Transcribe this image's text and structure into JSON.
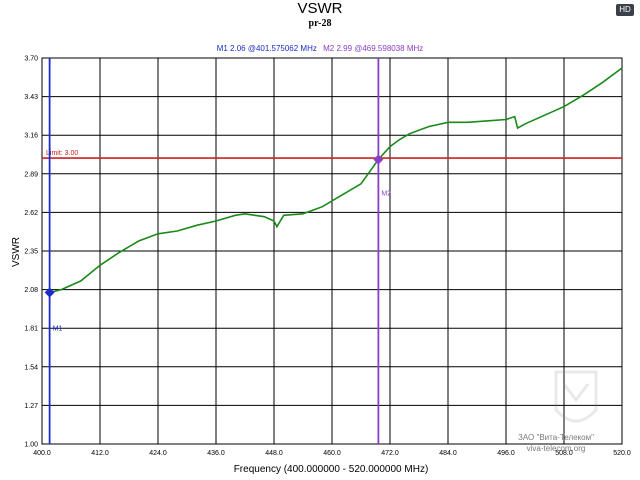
{
  "badge": "HD",
  "markers": {
    "m1_text": "M1  2.06 @401.575062 MHz",
    "m2_text": "M2  2.99 @469.598038 MHz",
    "m1_label": "M1",
    "m2_label": "M2"
  },
  "limit_label": "Limit: 3.00",
  "watermark": {
    "line1": "ЗАО \"Вита-Телеком\"",
    "line2": "viva-telecom.org"
  },
  "colors": {
    "trace": "#1a8a1a",
    "limit": "#cc2222",
    "m1": "#1a2dc8",
    "m2": "#8a3ec8",
    "grid": "#000000"
  },
  "chart_data": {
    "type": "line",
    "title": "VSWR",
    "subtitle": "pr-28",
    "xlabel": "Frequency (400.000000 - 520.000000 MHz)",
    "ylabel": "VSWR",
    "xlim": [
      400,
      520
    ],
    "ylim": [
      1.0,
      3.7
    ],
    "x_ticks": [
      400.0,
      412.0,
      424.0,
      436.0,
      448.0,
      460.0,
      472.0,
      484.0,
      496.0,
      508.0,
      520.0
    ],
    "x_tick_labels": [
      "400.0",
      "412.0",
      "424.0",
      "436.0",
      "448.0",
      "460.0",
      "472.0",
      "484.0",
      "496.0",
      "508.0",
      "520.0"
    ],
    "y_ticks": [
      1.0,
      1.27,
      1.54,
      1.81,
      2.08,
      2.35,
      2.62,
      2.89,
      3.16,
      3.43,
      3.7
    ],
    "y_tick_labels": [
      "1.00",
      "1.27",
      "1.54",
      "1.81",
      "2.08",
      "2.35",
      "2.62",
      "2.89",
      "3.16",
      "3.43",
      "3.70"
    ],
    "grid": true,
    "limit": 3.0,
    "markers": [
      {
        "name": "M1",
        "x": 401.575062,
        "y": 2.06
      },
      {
        "name": "M2",
        "x": 469.598038,
        "y": 2.99
      }
    ],
    "series": [
      {
        "x": [
          401.6,
          404,
          408,
          412,
          416,
          420,
          424,
          428,
          432,
          436,
          440,
          442,
          444,
          446,
          448,
          448.6,
          450,
          454,
          458,
          462,
          466,
          469.6,
          472,
          474,
          476,
          480,
          484,
          488,
          492,
          496,
          497.8,
          498.4,
          500,
          504,
          508,
          512,
          516,
          520
        ],
        "values": [
          2.06,
          2.08,
          2.14,
          2.25,
          2.34,
          2.42,
          2.47,
          2.49,
          2.53,
          2.56,
          2.6,
          2.61,
          2.6,
          2.59,
          2.56,
          2.52,
          2.6,
          2.61,
          2.66,
          2.74,
          2.82,
          2.99,
          3.08,
          3.13,
          3.17,
          3.22,
          3.25,
          3.25,
          3.26,
          3.27,
          3.29,
          3.21,
          3.24,
          3.3,
          3.36,
          3.44,
          3.53,
          3.63
        ]
      }
    ]
  }
}
